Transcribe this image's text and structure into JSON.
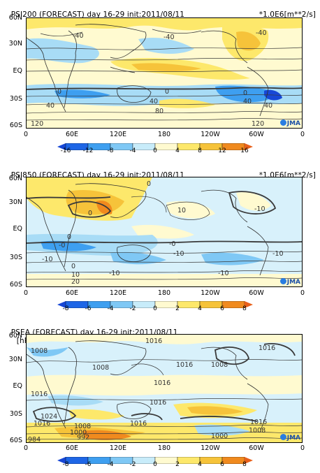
{
  "panels": [
    {
      "id": "psi200",
      "title": "PSI200 (FORECAST) day 16-29 init:2011/08/11",
      "units": "*1.0E6[m**2/s]",
      "lat_labels": [
        "60N",
        "30N",
        "EQ",
        "30S",
        "60S"
      ],
      "lon_labels": [
        "0",
        "60E",
        "120E",
        "180",
        "120W",
        "60W",
        "0"
      ],
      "colorbar_labels": [
        "-16",
        "-12",
        "-8",
        "-4",
        "0",
        "4",
        "8",
        "12",
        "16"
      ],
      "contour_labels": [
        "-40",
        "-40",
        "-40",
        "0",
        "0",
        "40",
        "40",
        "40",
        "80",
        "120",
        "120",
        "0",
        "40"
      ],
      "logo": "JMA"
    },
    {
      "id": "psi850",
      "title": "PSI850 (FORECAST) day 16-29 init:2011/08/11",
      "units": "*1.0E6[m**2/s]",
      "lat_labels": [
        "60N",
        "30N",
        "EQ",
        "30S",
        "60S"
      ],
      "lon_labels": [
        "0",
        "60E",
        "120E",
        "180",
        "120W",
        "60W",
        "0"
      ],
      "colorbar_labels": [
        "-8",
        "-6",
        "-4",
        "-2",
        "0",
        "2",
        "4",
        "6",
        "8"
      ],
      "contour_labels": [
        "0",
        "0",
        "10",
        "-10",
        "-0",
        "-0",
        "-10",
        "0",
        "-10",
        "-10",
        "-10",
        "-10",
        "0",
        "10",
        "20"
      ],
      "logo": "JMA"
    },
    {
      "id": "psea",
      "title": "PSEA (FORECAST) day 16-29 init:2011/08/11",
      "units": "[hPa]",
      "lat_labels": [
        "60N",
        "30N",
        "EQ",
        "30S",
        "60S"
      ],
      "lon_labels": [
        "0",
        "60E",
        "120E",
        "180",
        "120W",
        "60W",
        "0"
      ],
      "colorbar_labels": [
        "-8",
        "-6",
        "-4",
        "-2",
        "0",
        "2",
        "4",
        "6",
        "8"
      ],
      "contour_labels": [
        "1008",
        "1016",
        "1016",
        "1016",
        "1008",
        "1008",
        "1016",
        "1016",
        "1024",
        "1016",
        "1008",
        "1000",
        "992",
        "984",
        "1016",
        "1016",
        "1000",
        "1008",
        "1016"
      ],
      "logo": "JMA"
    }
  ],
  "colors": {
    "neg_strong": "#1747d6",
    "neg_mid": "#3e9ff0",
    "neg_weak": "#a8dcf6",
    "neg_faint": "#d8f1fb",
    "pos_faint": "#fffad0",
    "pos_weak": "#fde86b",
    "pos_mid": "#f6c33a",
    "pos_strong": "#f08a1e",
    "coast": "#2e2e2e"
  }
}
